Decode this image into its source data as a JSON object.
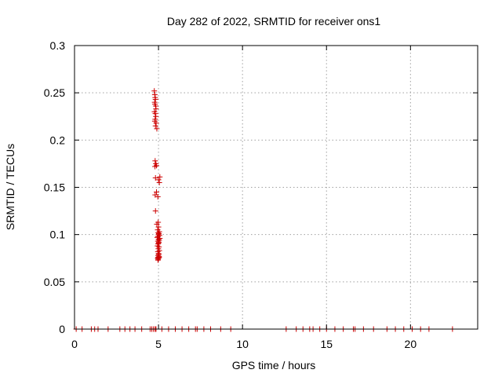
{
  "chart_data": {
    "type": "scatter",
    "title": "Day 282 of 2022, SRMTID for receiver ons1",
    "xlabel": "GPS time / hours",
    "ylabel": "SRMTID / TECUs",
    "xlim": [
      0,
      24
    ],
    "ylim": [
      0,
      0.3
    ],
    "xticks": [
      0,
      5,
      10,
      15,
      20
    ],
    "yticks": [
      0,
      0.05,
      0.1,
      0.15,
      0.2,
      0.25,
      0.3
    ],
    "xtick_labels": [
      "0",
      "5",
      "10",
      "15",
      "20"
    ],
    "ytick_labels": [
      "0",
      "0.05",
      "0.1",
      "0.15",
      "0.2",
      "0.25",
      "0.3"
    ],
    "grid": true,
    "marker": "+",
    "color": "#cc0000",
    "series": [
      {
        "x": [
          4.75,
          4.78,
          4.8,
          4.82,
          4.77,
          4.79,
          4.83,
          4.85,
          4.76,
          4.81,
          4.84,
          4.8,
          4.78,
          4.86,
          4.82,
          4.9,
          4.8,
          4.84,
          4.88,
          4.79,
          4.82,
          5.0,
          5.08,
          5.05,
          4.8,
          4.88,
          4.96,
          4.82,
          4.98,
          4.9,
          5.0,
          4.95,
          5.05,
          4.98,
          5.02,
          5.0,
          5.06,
          4.97,
          4.92,
          5.08,
          5.0,
          5.04,
          4.96,
          5.02,
          5.0,
          4.98,
          4.94,
          5.03,
          4.99,
          5.05,
          4.96,
          5.0,
          4.97,
          5.03,
          4.98,
          4.95,
          5.01,
          5.04,
          4.98,
          4.97,
          5.02
        ],
        "y": [
          0.252,
          0.248,
          0.245,
          0.243,
          0.24,
          0.238,
          0.236,
          0.233,
          0.23,
          0.228,
          0.225,
          0.222,
          0.22,
          0.218,
          0.215,
          0.212,
          0.178,
          0.175,
          0.173,
          0.172,
          0.16,
          0.158,
          0.161,
          0.155,
          0.142,
          0.145,
          0.14,
          0.125,
          0.113,
          0.111,
          0.108,
          0.105,
          0.103,
          0.102,
          0.101,
          0.1,
          0.099,
          0.098,
          0.097,
          0.096,
          0.095,
          0.094,
          0.093,
          0.092,
          0.091,
          0.09,
          0.088,
          0.087,
          0.085,
          0.083,
          0.082,
          0.08,
          0.078,
          0.077,
          0.076,
          0.075,
          0.075,
          0.076,
          0.074,
          0.073,
          0.079
        ]
      },
      {
        "x": [
          0.1,
          0.45,
          1.0,
          1.2,
          1.4,
          2.0,
          2.7,
          3.0,
          3.3,
          3.6,
          4.0,
          4.5,
          4.6,
          4.7,
          4.8,
          4.85,
          5.2,
          5.6,
          6.0,
          6.4,
          6.8,
          7.2,
          7.3,
          7.7,
          8.1,
          8.7,
          9.3,
          12.6,
          13.2,
          13.6,
          14.0,
          14.2,
          14.6,
          15.0,
          15.5,
          16.0,
          16.6,
          16.7,
          17.2,
          17.8,
          18.6,
          19.1,
          19.6,
          20.1,
          20.6,
          21.1,
          22.5
        ],
        "y": [
          0,
          0,
          0,
          0,
          0,
          0,
          0,
          0,
          0,
          0,
          0,
          0,
          0,
          0,
          0,
          0,
          0,
          0,
          0,
          0,
          0,
          0,
          0,
          0,
          0,
          0,
          0,
          0,
          0,
          0,
          0,
          0,
          0,
          0,
          0,
          0,
          0,
          0,
          0,
          0,
          0,
          0,
          0,
          0,
          0,
          0,
          0
        ]
      }
    ]
  }
}
